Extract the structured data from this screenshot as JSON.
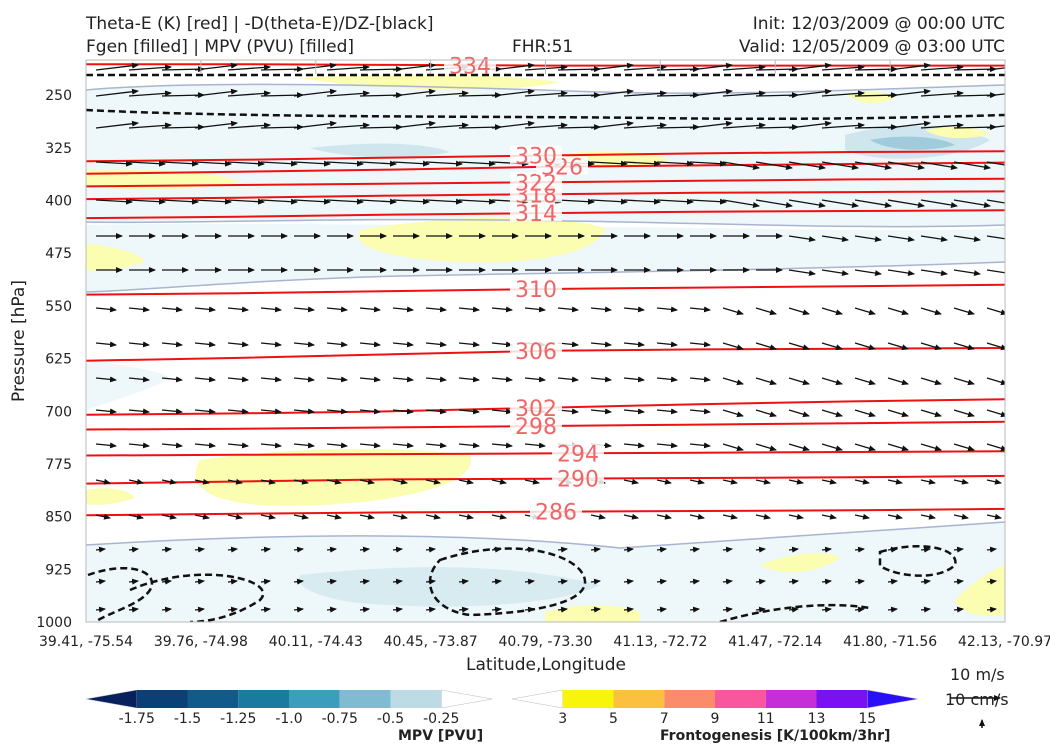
{
  "header": {
    "title_line1": "Theta-E (K) [red] | -D(theta-E)/DZ-[black]",
    "title_line2": "Fgen [filled] | MPV (PVU) [filled]",
    "fhr": "FHR:51",
    "init": "Init: 12/03/2009 @ 00:00 UTC",
    "valid": "Valid: 12/05/2009 @ 03:00 UTC"
  },
  "chart_data": {
    "type": "cross-section",
    "xlabel": "Latitude,Longitude",
    "ylabel": "Pressure [hPa]",
    "x_ticks": [
      "39.41, -75.54",
      "39.76, -74.98",
      "40.11, -74.43",
      "40.45, -73.87",
      "40.79, -73.30",
      "41.13, -72.72",
      "41.47, -72.14",
      "41.80, -71.56",
      "42.13, -70.97"
    ],
    "y_ticks": [
      250,
      325,
      400,
      475,
      550,
      625,
      700,
      775,
      850,
      925,
      1000
    ],
    "ylim": [
      1000,
      200
    ],
    "y_scale": "linear, inverted",
    "theta_e_contours": [
      {
        "level": 286,
        "label": "286",
        "p": [
          848,
          846,
          844,
          843,
          842,
          841,
          839
        ]
      },
      {
        "level": 290,
        "label": "290",
        "p": [
          803,
          800,
          797,
          796,
          795,
          794,
          792
        ]
      },
      {
        "level": 294,
        "label": "294",
        "p": [
          763,
          762,
          761,
          760,
          759,
          758,
          757
        ]
      },
      {
        "level": 298,
        "label": "298",
        "p": [
          726,
          725,
          723,
          721,
          719,
          717,
          715
        ]
      },
      {
        "level": 302,
        "label": "302",
        "p": [
          705,
          703,
          700,
          695,
          690,
          686,
          683
        ]
      },
      {
        "level": 306,
        "label": "306",
        "p": [
          628,
          624,
          619,
          614,
          612,
          611,
          610
        ]
      },
      {
        "level": 310,
        "label": "310",
        "p": [
          534,
          532,
          529,
          526,
          524,
          522,
          520
        ]
      },
      {
        "level": 314,
        "label": "314",
        "p": [
          425,
          423,
          420,
          418,
          416,
          415,
          414
        ]
      },
      {
        "level": 318,
        "label": "318",
        "p": [
          398,
          396,
          393,
          391,
          389,
          388,
          387
        ]
      },
      {
        "level": 322,
        "label": "322",
        "p": [
          380,
          378,
          376,
          374,
          372,
          370,
          369
        ]
      },
      {
        "level": 326,
        "label": "326",
        "p": [
          362,
          359,
          356,
          352,
          350,
          348,
          346
        ]
      },
      {
        "level": 330,
        "label": "330",
        "p": [
          344,
          342,
          339,
          336,
          333,
          331,
          330
        ]
      },
      {
        "level": 334,
        "label": "334",
        "p": [
          206,
          206,
          207,
          208,
          208,
          208,
          208
        ]
      }
    ],
    "wind_scale": {
      "horizontal": "10 m/s",
      "vertical": "10 cm/s"
    },
    "mpv_colorbar": {
      "label": "MPV [PVU]",
      "ticks": [
        "-1.75",
        "-1.5",
        "-1.25",
        "-1.0",
        "-0.75",
        "-0.5",
        "-0.25"
      ],
      "colors": [
        "#08205e",
        "#0b3f78",
        "#105a8c",
        "#1a7aa0",
        "#3d9dbd",
        "#7fbcd2",
        "#bcdbe4",
        "#ffffff"
      ]
    },
    "fgen_colorbar": {
      "label": "Frontogenesis [K/100km/3hr]",
      "ticks": [
        "3",
        "5",
        "7",
        "9",
        "11",
        "13",
        "15"
      ],
      "colors": [
        "#ffffff",
        "#f8f40c",
        "#fcc040",
        "#fb8c6a",
        "#f8579e",
        "#c62ed8",
        "#7b10f2",
        "#2a10f8"
      ]
    }
  }
}
